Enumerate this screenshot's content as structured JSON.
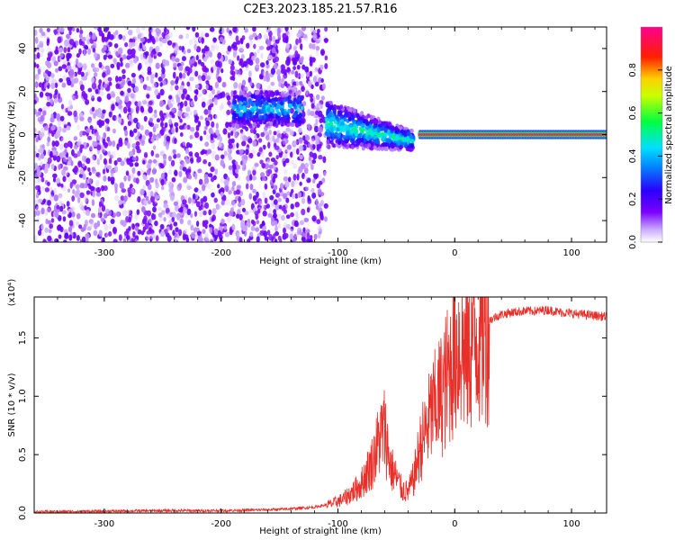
{
  "title": "C2E3.2023.185.21.57.R16",
  "chart_data": [
    {
      "type": "heatmap",
      "xlabel": "Height of straight line (km)",
      "ylabel": "Frequency (Hz)",
      "xlim": [
        -360,
        130
      ],
      "ylim": [
        -50,
        50
      ],
      "xticks": [
        -300,
        -200,
        -100,
        0,
        100
      ],
      "xtick_labels": [
        "-300",
        "-200",
        "-100",
        "0",
        "100"
      ],
      "yticks": [
        -40,
        -20,
        0,
        20,
        40
      ],
      "ytick_labels": [
        "-40",
        "-20",
        "0",
        "20",
        "40"
      ],
      "colorbar": {
        "label": "Normalized spectral amplitude",
        "range": [
          0.0,
          1.0
        ],
        "ticks": [
          0.0,
          0.2,
          0.4,
          0.6,
          0.8
        ],
        "tick_labels": [
          "0.0",
          "0.2",
          "0.4",
          "0.6",
          "0.8"
        ],
        "colormap": "rainbow (white-violet-blue-cyan-green-yellow-red-magenta)"
      },
      "regions": [
        {
          "x_range": [
            -360,
            -110
          ],
          "freq_range": [
            -50,
            50
          ],
          "amplitude": "noise ~0.0-0.1"
        },
        {
          "x_range": [
            -190,
            -130
          ],
          "freq_center": 12,
          "amplitude": "~0.1-0.4"
        },
        {
          "x_range": [
            -110,
            -35
          ],
          "freq_center_start": 5,
          "freq_center_end": -3,
          "amplitude": "~0.1-0.5"
        },
        {
          "x_range": [
            -30,
            130
          ],
          "freq_center": 0,
          "amplitude": "~0.85-1.0"
        }
      ],
      "grid": false
    },
    {
      "type": "line",
      "xlabel": "Height of straight line (km)",
      "ylabel": "SNR (10 * v/v)",
      "multiplier_label": "(x10⁴)",
      "xlim": [
        -360,
        130
      ],
      "ylim": [
        0.0,
        1.85
      ],
      "xticks": [
        -300,
        -200,
        -100,
        0,
        100
      ],
      "xtick_labels": [
        "-300",
        "-200",
        "-100",
        "0",
        "100"
      ],
      "yticks": [
        0.0,
        0.5,
        1.0,
        1.5
      ],
      "ytick_labels": [
        "0.0",
        "0.5",
        "1.0",
        "1.5"
      ],
      "line_color": "#e8302a",
      "series": [
        {
          "x": [
            -360,
            -300,
            -250,
            -200,
            -150,
            -120,
            -105,
            -95,
            -85,
            -80,
            -75,
            -70,
            -65,
            -60,
            -55,
            -50,
            -45,
            -40,
            -35,
            -30,
            -25,
            -20,
            -15,
            -10,
            -5,
            0,
            5,
            10,
            15,
            20,
            25,
            30,
            35,
            40,
            50,
            60,
            70,
            80,
            90,
            100,
            110,
            120,
            130
          ],
          "y": [
            0.01,
            0.015,
            0.02,
            0.02,
            0.03,
            0.05,
            0.08,
            0.12,
            0.2,
            0.25,
            0.35,
            0.45,
            0.62,
            0.72,
            0.4,
            0.3,
            0.2,
            0.18,
            0.3,
            0.55,
            0.7,
            0.85,
            0.95,
            1.05,
            1.2,
            1.4,
            1.45,
            1.35,
            1.5,
            1.55,
            1.6,
            1.65,
            1.68,
            1.7,
            1.72,
            1.73,
            1.73,
            1.74,
            1.72,
            1.71,
            1.7,
            1.69,
            1.68
          ]
        }
      ],
      "grid": false
    }
  ]
}
